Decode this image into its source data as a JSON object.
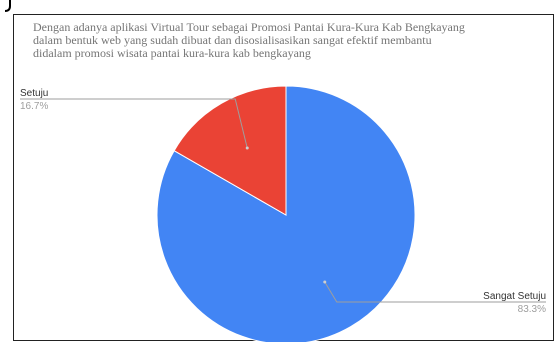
{
  "chart_data": {
    "type": "pie",
    "title": "Dengan adanya aplikasi Virtual Tour sebagai Promosi Pantai Kura-Kura Kab Bengkayang\ndalam bentuk web yang sudah dibuat dan disosialisasikan sangat efektif membantu\ndidalam promosi wisata pantai kura-kura kab bengkayang",
    "slices": [
      {
        "label": "Sangat Setuju",
        "value": 83.3,
        "pct_label": "83.3%",
        "color": "#4285f4"
      },
      {
        "label": "Setuju",
        "value": 16.7,
        "pct_label": "16.7%",
        "color": "#ea4335"
      }
    ],
    "start_angle_deg": 0,
    "direction": "clockwise"
  }
}
